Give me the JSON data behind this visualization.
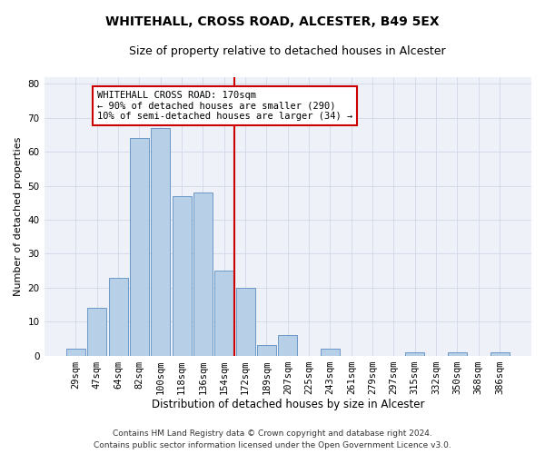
{
  "title": "WHITEHALL, CROSS ROAD, ALCESTER, B49 5EX",
  "subtitle": "Size of property relative to detached houses in Alcester",
  "xlabel": "Distribution of detached houses by size in Alcester",
  "ylabel": "Number of detached properties",
  "bar_labels": [
    "29sqm",
    "47sqm",
    "64sqm",
    "82sqm",
    "100sqm",
    "118sqm",
    "136sqm",
    "154sqm",
    "172sqm",
    "189sqm",
    "207sqm",
    "225sqm",
    "243sqm",
    "261sqm",
    "279sqm",
    "297sqm",
    "315sqm",
    "332sqm",
    "350sqm",
    "368sqm",
    "386sqm"
  ],
  "bar_values": [
    2,
    14,
    23,
    64,
    67,
    47,
    48,
    25,
    20,
    3,
    6,
    0,
    2,
    0,
    0,
    0,
    1,
    0,
    1,
    0,
    1
  ],
  "bar_color": "#b8cfe8",
  "bar_edge_color": "#5b8dc0",
  "vline_index": 8,
  "vline_color": "#cc0000",
  "annotation_text": "WHITEHALL CROSS ROAD: 170sqm\n← 90% of detached houses are smaller (290)\n10% of semi-detached houses are larger (34) →",
  "annotation_box_color": "#ffffff",
  "annotation_box_edge": "#cc0000",
  "ylim": [
    0,
    82
  ],
  "yticks": [
    0,
    10,
    20,
    30,
    40,
    50,
    60,
    70,
    80
  ],
  "grid_color": "#d0d8e8",
  "background_color": "#eef2f8",
  "footer_line1": "Contains HM Land Registry data © Crown copyright and database right 2024.",
  "footer_line2": "Contains public sector information licensed under the Open Government Licence v3.0.",
  "title_fontsize": 10,
  "subtitle_fontsize": 9,
  "xlabel_fontsize": 8.5,
  "ylabel_fontsize": 8,
  "tick_fontsize": 7.5,
  "annotation_fontsize": 7.5,
  "footer_fontsize": 6.5
}
